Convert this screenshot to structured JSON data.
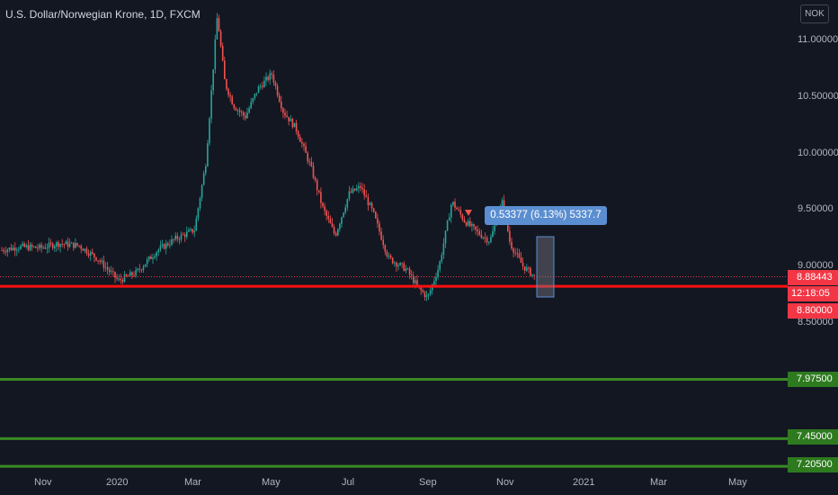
{
  "header": {
    "title": "U.S. Dollar/Norwegian Krone, 1D, FXCM",
    "currency_button": "NOK"
  },
  "colors": {
    "background": "#131722",
    "up_candle": "#26a69a",
    "down_candle": "#ef5350",
    "horizontal_red": "#ff1010",
    "horizontal_green": "#3a8a24",
    "measure_box": "#5b8ed0"
  },
  "measure_label": "0.53377 (6.13%) 5337.7",
  "price_tags": {
    "current_price": "8.88443",
    "countdown": "12:18:05",
    "red_line": "8.80000",
    "green_1": "7.97500",
    "green_2": "7.45000",
    "green_3": "7.20500"
  },
  "chart_data": {
    "type": "line",
    "title": "U.S. Dollar/Norwegian Krone, 1D, FXCM",
    "xlabel": "",
    "ylabel": "",
    "x_ticks": [
      "Nov",
      "2020",
      "Mar",
      "May",
      "Jul",
      "Sep",
      "Nov",
      "2021",
      "Mar",
      "May"
    ],
    "y_ticks": [
      "11.00000",
      "10.50000",
      "10.00000",
      "9.50000",
      "9.00000",
      "8.50000"
    ],
    "ylim": [
      7.15,
      11.2
    ],
    "series": [
      {
        "x": [
          "2019-10-01",
          "2019-10-15",
          "2019-11-01",
          "2019-11-15",
          "2019-12-01",
          "2019-12-15",
          "2020-01-01",
          "2020-01-15",
          "2020-02-01",
          "2020-02-15",
          "2020-03-01",
          "2020-03-10",
          "2020-03-19",
          "2020-03-25",
          "2020-04-01",
          "2020-04-10",
          "2020-04-20",
          "2020-05-01",
          "2020-05-10",
          "2020-05-20",
          "2020-06-01",
          "2020-06-10",
          "2020-06-20",
          "2020-07-01",
          "2020-07-10",
          "2020-07-20",
          "2020-08-01",
          "2020-08-15",
          "2020-08-25",
          "2020-09-01",
          "2020-09-10",
          "2020-09-20",
          "2020-09-30",
          "2020-10-10",
          "2020-10-20",
          "2020-10-30",
          "2020-11-05",
          "2020-11-15",
          "2020-11-25"
        ],
        "values": [
          9.12,
          9.15,
          9.14,
          9.18,
          9.16,
          9.05,
          8.85,
          8.92,
          9.12,
          9.22,
          9.3,
          9.9,
          11.2,
          10.6,
          10.4,
          10.3,
          10.55,
          10.68,
          10.35,
          10.2,
          9.85,
          9.5,
          9.25,
          9.62,
          9.68,
          9.45,
          9.05,
          8.95,
          8.78,
          8.7,
          8.98,
          9.55,
          9.38,
          9.28,
          9.2,
          9.55,
          9.18,
          8.98,
          8.88
        ]
      }
    ],
    "horizontal_lines": [
      8.8,
      7.975,
      7.45,
      7.205
    ]
  }
}
